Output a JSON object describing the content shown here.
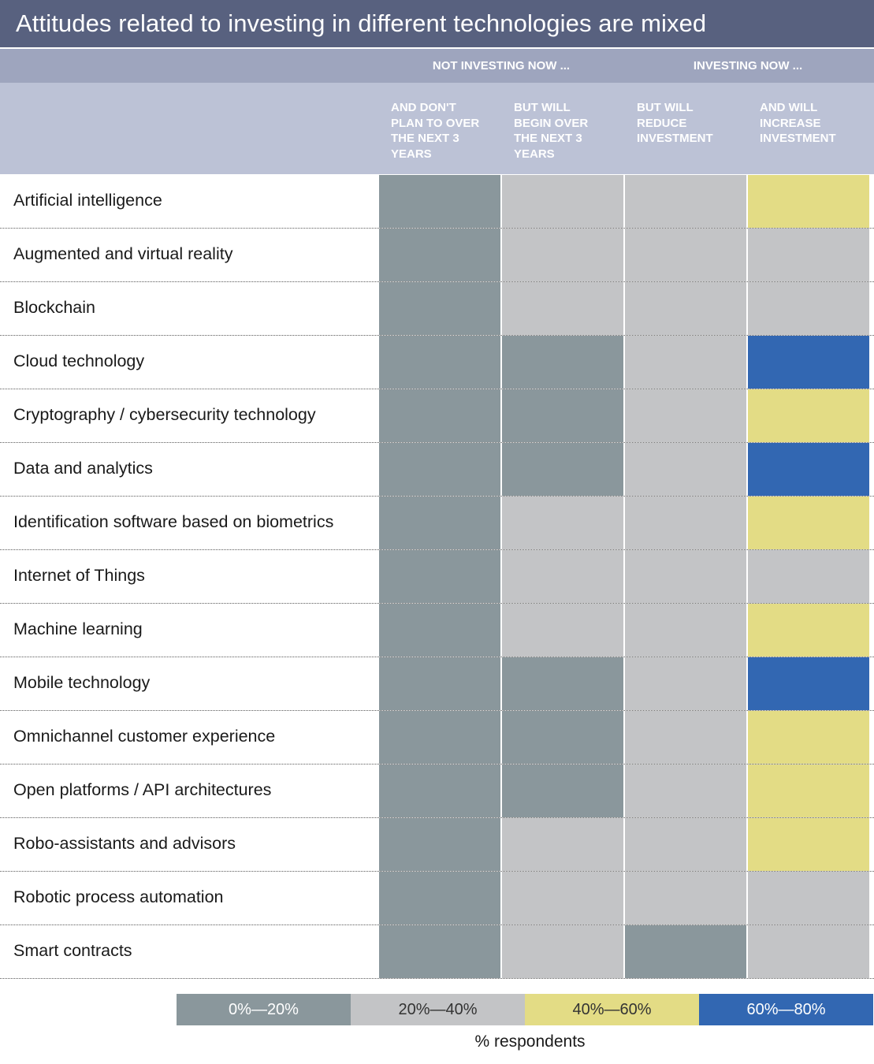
{
  "chart_data": {
    "type": "heatmap",
    "title": "Attitudes related to investing in different technologies are mixed",
    "column_groups": [
      {
        "label": "NOT INVESTING NOW ...",
        "columns": [
          0,
          1
        ]
      },
      {
        "label": "INVESTING NOW ...",
        "columns": [
          2,
          3
        ]
      }
    ],
    "columns": [
      "AND DON'T\nPLAN TO OVER\nTHE NEXT 3\nYEARS",
      "BUT WILL\nBEGIN OVER\nTHE NEXT 3\nYEARS",
      "BUT WILL\nREDUCE\nINVESTMENT",
      "AND WILL\nINCREASE\nINVESTMENT"
    ],
    "rows": [
      "Artificial intelligence",
      "Augmented and virtual reality",
      "Blockchain",
      "Cloud technology",
      "Cryptography / cybersecurity technology",
      "Data and analytics",
      "Identification software based on biometrics",
      "Internet of Things",
      "Machine learning",
      "Mobile technology",
      "Omnichannel customer experience",
      "Open platforms / API architectures",
      "Robo-assistants and advisors",
      "Robotic process automation",
      "Smart contracts"
    ],
    "bins": [
      "0%—20%",
      "20%—40%",
      "40%—60%",
      "60%—80%"
    ],
    "bin_colors": [
      "#8a979c",
      "#c3c4c6",
      "#e3dc85",
      "#3267b2"
    ],
    "values": [
      [
        0,
        1,
        1,
        2
      ],
      [
        0,
        1,
        1,
        1
      ],
      [
        0,
        1,
        1,
        1
      ],
      [
        0,
        0,
        1,
        3
      ],
      [
        0,
        0,
        1,
        2
      ],
      [
        0,
        0,
        1,
        3
      ],
      [
        0,
        1,
        1,
        2
      ],
      [
        0,
        1,
        1,
        1
      ],
      [
        0,
        1,
        1,
        2
      ],
      [
        0,
        0,
        1,
        3
      ],
      [
        0,
        0,
        1,
        2
      ],
      [
        0,
        0,
        1,
        2
      ],
      [
        0,
        1,
        1,
        2
      ],
      [
        0,
        1,
        1,
        1
      ],
      [
        0,
        1,
        0,
        1
      ]
    ],
    "legend_caption": "% respondents"
  }
}
